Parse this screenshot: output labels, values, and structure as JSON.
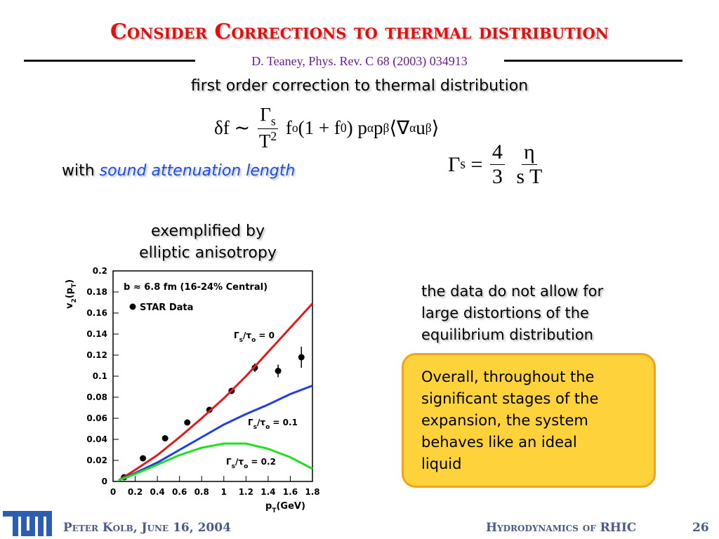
{
  "slide": {
    "title": "Consider Corrections to thermal distribution",
    "citation": "D. Teaney, Phys. Rev. C 68 (2003) 034913",
    "heading": "first order correction to thermal distribution",
    "formula": [
      {
        "t": "δf ∼ "
      },
      {
        "frac": {
          "num": [
            {
              "t": "Γ"
            },
            {
              "sub": "s"
            }
          ],
          "den": [
            {
              "t": "T"
            },
            {
              "sup": "2"
            }
          ]
        }
      },
      {
        "t": " f"
      },
      {
        "sub": "o"
      },
      {
        "t": "(1 + f"
      },
      {
        "sub": "0"
      },
      {
        "t": ") p"
      },
      {
        "sup": "α"
      },
      {
        "t": "p"
      },
      {
        "sup": "β"
      },
      {
        "t": "⟨∇"
      },
      {
        "sub": "α"
      },
      {
        "t": "u"
      },
      {
        "sub": "β"
      },
      {
        "t": "⟩"
      }
    ],
    "with_text": "with ",
    "with_term": "sound attenuation length",
    "gamma_formula": [
      {
        "t": "Γ"
      },
      {
        "sub": "s"
      },
      {
        "t": " = "
      },
      {
        "frac": {
          "num": [
            {
              "t": "4"
            }
          ],
          "den": [
            {
              "t": "3"
            }
          ]
        }
      },
      {
        "t": " "
      },
      {
        "frac": {
          "num": [
            {
              "t": "η"
            }
          ],
          "den": [
            {
              "t": "s T"
            }
          ]
        }
      }
    ],
    "chart_caption": [
      "exemplified by",
      "elliptic anisotropy"
    ],
    "observation": [
      "the data do not allow for",
      "large distortions of the",
      "equilibrium distribution"
    ],
    "conclusion": [
      "Overall, throughout the",
      "significant stages of the",
      "expansion, the system",
      "behaves like an ideal",
      "liquid"
    ],
    "footer_left": "Peter Kolb, June 16, 2004",
    "footer_right": "Hydrodynamics of RHIC",
    "page_number": "26"
  },
  "chart_data": {
    "type": "scatter",
    "annotation": "b ≈ 6.8 fm (16-24% Central)",
    "xlabel": [
      {
        "t": "p"
      },
      {
        "sub": "T"
      },
      {
        "t": "(GeV)"
      }
    ],
    "ylabel": [
      {
        "t": "v"
      },
      {
        "sub": "2"
      },
      {
        "t": "(p"
      },
      {
        "sub": "T"
      },
      {
        "t": ")"
      }
    ],
    "xlim": [
      0,
      1.8
    ],
    "ylim": [
      0,
      0.2
    ],
    "xticks": [
      0,
      0.2,
      0.4,
      0.6,
      0.8,
      1,
      1.2,
      1.4,
      1.6,
      1.8
    ],
    "yticks": [
      0,
      0.02,
      0.04,
      0.06,
      0.08,
      0.1,
      0.12,
      0.14,
      0.16,
      0.18,
      0.2
    ],
    "series": [
      {
        "name": "STAR Data",
        "type": "scatter",
        "color": "#000000",
        "x": [
          0.1,
          0.27,
          0.47,
          0.67,
          0.87,
          1.07,
          1.28,
          1.49,
          1.7
        ],
        "values": [
          0.004,
          0.022,
          0.041,
          0.056,
          0.068,
          0.086,
          0.108,
          0.105,
          0.118
        ],
        "errors": [
          0.002,
          0.001,
          0.001,
          0.001,
          0.002,
          0.003,
          0.004,
          0.006,
          0.01
        ]
      },
      {
        "name": [
          {
            "t": "Γ"
          },
          {
            "sub": "s"
          },
          {
            "t": "/τ"
          },
          {
            "sub": "o"
          },
          {
            "t": " = 0"
          }
        ],
        "type": "line",
        "color": "#e41a1c",
        "x": [
          0.05,
          0.2,
          0.4,
          0.6,
          0.8,
          1,
          1.2,
          1.4,
          1.6,
          1.8
        ],
        "values": [
          0.001,
          0.011,
          0.025,
          0.042,
          0.06,
          0.079,
          0.1,
          0.123,
          0.146,
          0.169
        ]
      },
      {
        "name": [
          {
            "t": "Γ"
          },
          {
            "sub": "s"
          },
          {
            "t": "/τ"
          },
          {
            "sub": "o"
          },
          {
            "t": " = 0.1"
          }
        ],
        "type": "line",
        "color": "#1f3fe0",
        "x": [
          0.05,
          0.2,
          0.4,
          0.6,
          0.8,
          1,
          1.2,
          1.4,
          1.6,
          1.8
        ],
        "values": [
          0.001,
          0.008,
          0.018,
          0.03,
          0.042,
          0.054,
          0.064,
          0.073,
          0.083,
          0.091
        ]
      },
      {
        "name": [
          {
            "t": "Γ"
          },
          {
            "sub": "s"
          },
          {
            "t": "/τ"
          },
          {
            "sub": "o"
          },
          {
            "t": " = 0.2"
          }
        ],
        "type": "line",
        "color": "#1fe01f",
        "x": [
          0.05,
          0.2,
          0.4,
          0.6,
          0.8,
          1,
          1.2,
          1.4,
          1.6,
          1.8
        ],
        "values": [
          0.001,
          0.007,
          0.016,
          0.025,
          0.032,
          0.036,
          0.036,
          0.031,
          0.023,
          0.012
        ]
      }
    ]
  }
}
